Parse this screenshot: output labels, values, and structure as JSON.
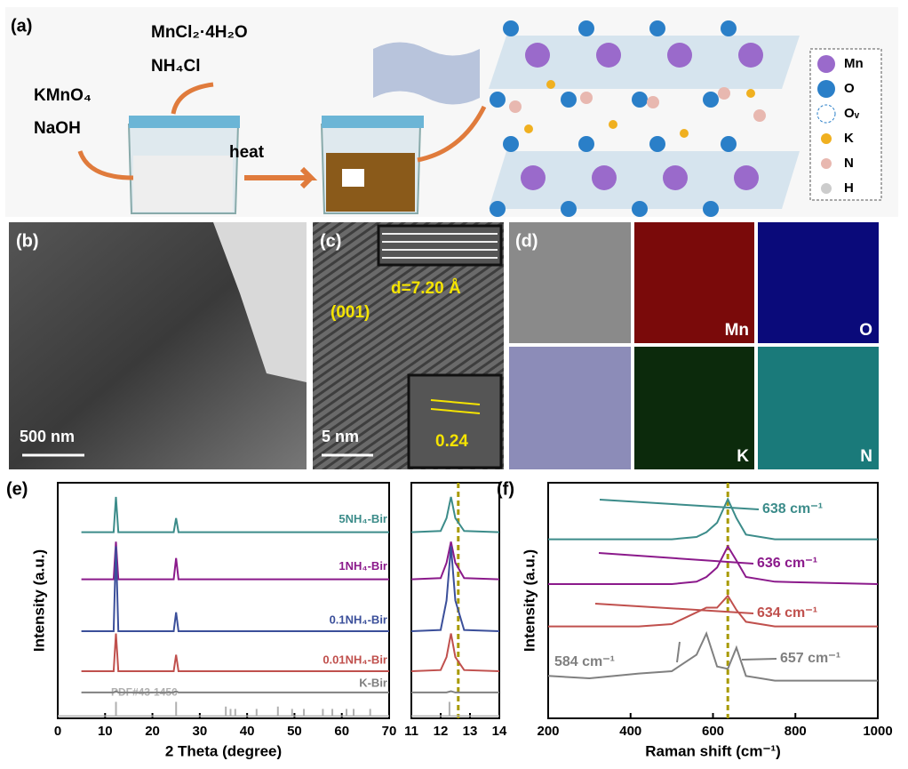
{
  "schematic": {
    "label": "(a)",
    "reagent_1": "MnCl₂·4H₂O",
    "reagent_2": "NH₄Cl",
    "reagent_3": "KMnO₄",
    "reagent_4": "NaOH",
    "step": "heat",
    "legend": [
      "Mn",
      "O",
      "Oᵥ",
      "K",
      "N",
      "H"
    ]
  },
  "tem": {
    "label": "(b)",
    "scale": "500 nm"
  },
  "hrtem": {
    "label": "(c)",
    "spacing": "d=7.20 Å",
    "plane": "(001)",
    "scale": "5 nm",
    "inset_value": "0.24"
  },
  "mapping": {
    "label": "(d)",
    "elements": [
      "Mn",
      "O",
      "K",
      "N"
    ]
  },
  "chart_data": [
    {
      "type": "line",
      "panel_label": "(e)",
      "x_label": "2 Theta (degree)",
      "y_label": "Intensity (a.u.)",
      "x": [
        5,
        11.8,
        12.3,
        12.8,
        24.5,
        25,
        25.5,
        70
      ],
      "xlim": [
        0,
        70
      ],
      "xticks": [
        0,
        10,
        20,
        30,
        40,
        50,
        60,
        70
      ],
      "ylim": [
        0,
        100
      ],
      "series": [
        {
          "name": "5NH₄-Bir",
          "color": "#3c8c8a",
          "values": [
            79,
            79,
            94,
            79,
            79,
            85,
            79,
            79
          ]
        },
        {
          "name": "1NH₄-Bir",
          "color": "#8b1a8b",
          "values": [
            59,
            59,
            75,
            59,
            59,
            68,
            59,
            59
          ]
        },
        {
          "name": "0.1NH₄-Bir",
          "color": "#3b4f9a",
          "values": [
            37,
            37,
            73,
            37,
            37,
            45,
            37,
            37
          ]
        },
        {
          "name": "0.01NH₄-Bir",
          "color": "#c0504d",
          "values": [
            20,
            20,
            36,
            20,
            20,
            27,
            20,
            20
          ]
        },
        {
          "name": "K-Bir",
          "color": "#808080",
          "values": [
            11,
            11,
            11.5,
            11,
            11,
            11.5,
            11,
            11
          ]
        }
      ],
      "reference": {
        "name": "PDF#43-1456",
        "color": "#b0b0b0",
        "x": [
          12.3,
          25,
          35.5,
          36.5,
          37.5,
          42,
          46.5,
          49.5,
          52,
          56,
          58,
          61,
          62.5,
          66
        ],
        "values": [
          6,
          6,
          4,
          3,
          3,
          3,
          4,
          3,
          3,
          3,
          3,
          3,
          3,
          3
        ]
      }
    },
    {
      "type": "line",
      "x": [
        11,
        12,
        12.2,
        12.35,
        12.5,
        12.8,
        14
      ],
      "xlim": [
        11,
        14
      ],
      "xticks": [
        11,
        12,
        13,
        14
      ],
      "ylim": [
        0,
        100
      ],
      "marker_x": 12.6,
      "series": [
        {
          "color": "#3c8c8a",
          "values": [
            79,
            79.5,
            85,
            94,
            85,
            79.5,
            79
          ]
        },
        {
          "color": "#8b1a8b",
          "values": [
            59,
            59.5,
            66,
            75,
            66,
            59.5,
            59
          ]
        },
        {
          "color": "#3b4f9a",
          "values": [
            37,
            37.5,
            50,
            73,
            50,
            37.5,
            37
          ]
        },
        {
          "color": "#c0504d",
          "values": [
            20,
            20.5,
            26,
            36,
            26,
            20.5,
            20
          ]
        },
        {
          "color": "#808080",
          "values": [
            11,
            11,
            11,
            11.5,
            11,
            11,
            11
          ]
        }
      ],
      "reference": {
        "color": "#b0b0b0",
        "x": [
          12.3
        ],
        "values": [
          6
        ]
      }
    },
    {
      "type": "line",
      "panel_label": "(f)",
      "x_label": "Raman shift (cm⁻¹)",
      "y_label": "Intensity (a.u.)",
      "x": [
        200,
        300,
        420,
        500,
        560,
        584,
        610,
        636,
        657,
        680,
        750,
        1000
      ],
      "xlim": [
        200,
        1000
      ],
      "xticks": [
        200,
        400,
        600,
        800,
        1000
      ],
      "ylim": [
        0,
        100
      ],
      "marker_x": 636,
      "series": [
        {
          "color": "#3c8c8a",
          "values": [
            76,
            76,
            76,
            76,
            77,
            79,
            83,
            93,
            85,
            78,
            76,
            76
          ]
        },
        {
          "color": "#8b1a8b",
          "values": [
            57,
            57,
            57,
            57,
            58,
            60,
            64,
            73,
            67,
            60,
            58,
            57
          ]
        },
        {
          "color": "#c0504d",
          "values": [
            39,
            39,
            39,
            40,
            45,
            47,
            47,
            52,
            46,
            41,
            39,
            39
          ]
        },
        {
          "color": "#808080",
          "values": [
            18,
            17,
            19,
            20,
            27,
            36,
            22,
            21,
            30,
            18,
            16,
            16
          ]
        }
      ],
      "annotations": [
        {
          "text": "638 cm⁻¹",
          "color": "#3c8c8a"
        },
        {
          "text": "636 cm⁻¹",
          "color": "#8b1a8b"
        },
        {
          "text": "634 cm⁻¹",
          "color": "#c0504d"
        },
        {
          "text": "584 cm⁻¹",
          "color": "#808080"
        },
        {
          "text": "657 cm⁻¹",
          "color": "#808080"
        }
      ]
    }
  ]
}
